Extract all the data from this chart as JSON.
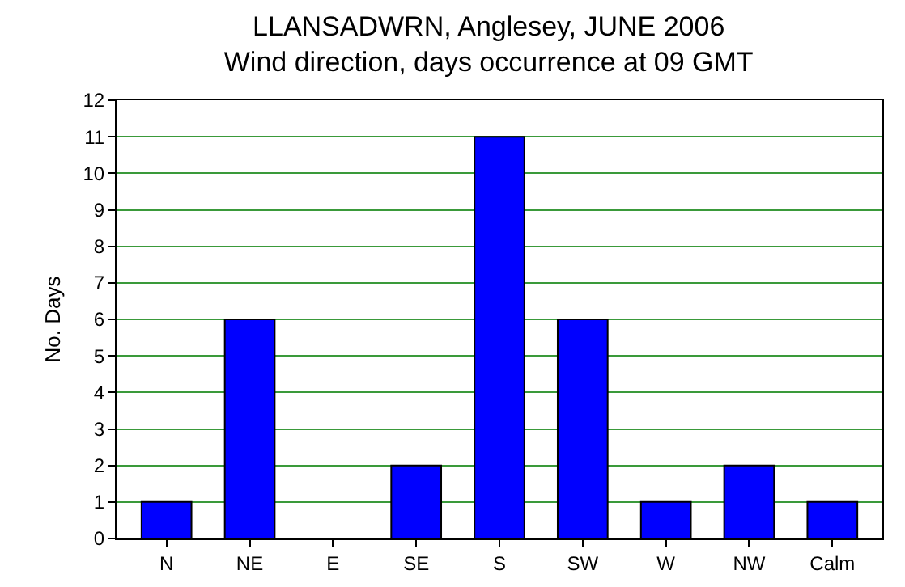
{
  "chart_data": {
    "type": "bar",
    "title": "LLANSADWRN, Anglesey, JUNE 2006",
    "subtitle": "Wind direction, days occurrence at 09 GMT",
    "ylabel": "No. Days",
    "categories": [
      "N",
      "NE",
      "E",
      "SE",
      "S",
      "SW",
      "W",
      "NW",
      "Calm"
    ],
    "values": [
      1,
      6,
      0,
      2,
      11,
      6,
      1,
      2,
      1
    ],
    "color": "#0000ff",
    "ylim": [
      0,
      12
    ],
    "yticks": [
      0,
      1,
      2,
      3,
      4,
      5,
      6,
      7,
      8,
      9,
      10,
      11,
      12
    ],
    "grid": "y"
  }
}
